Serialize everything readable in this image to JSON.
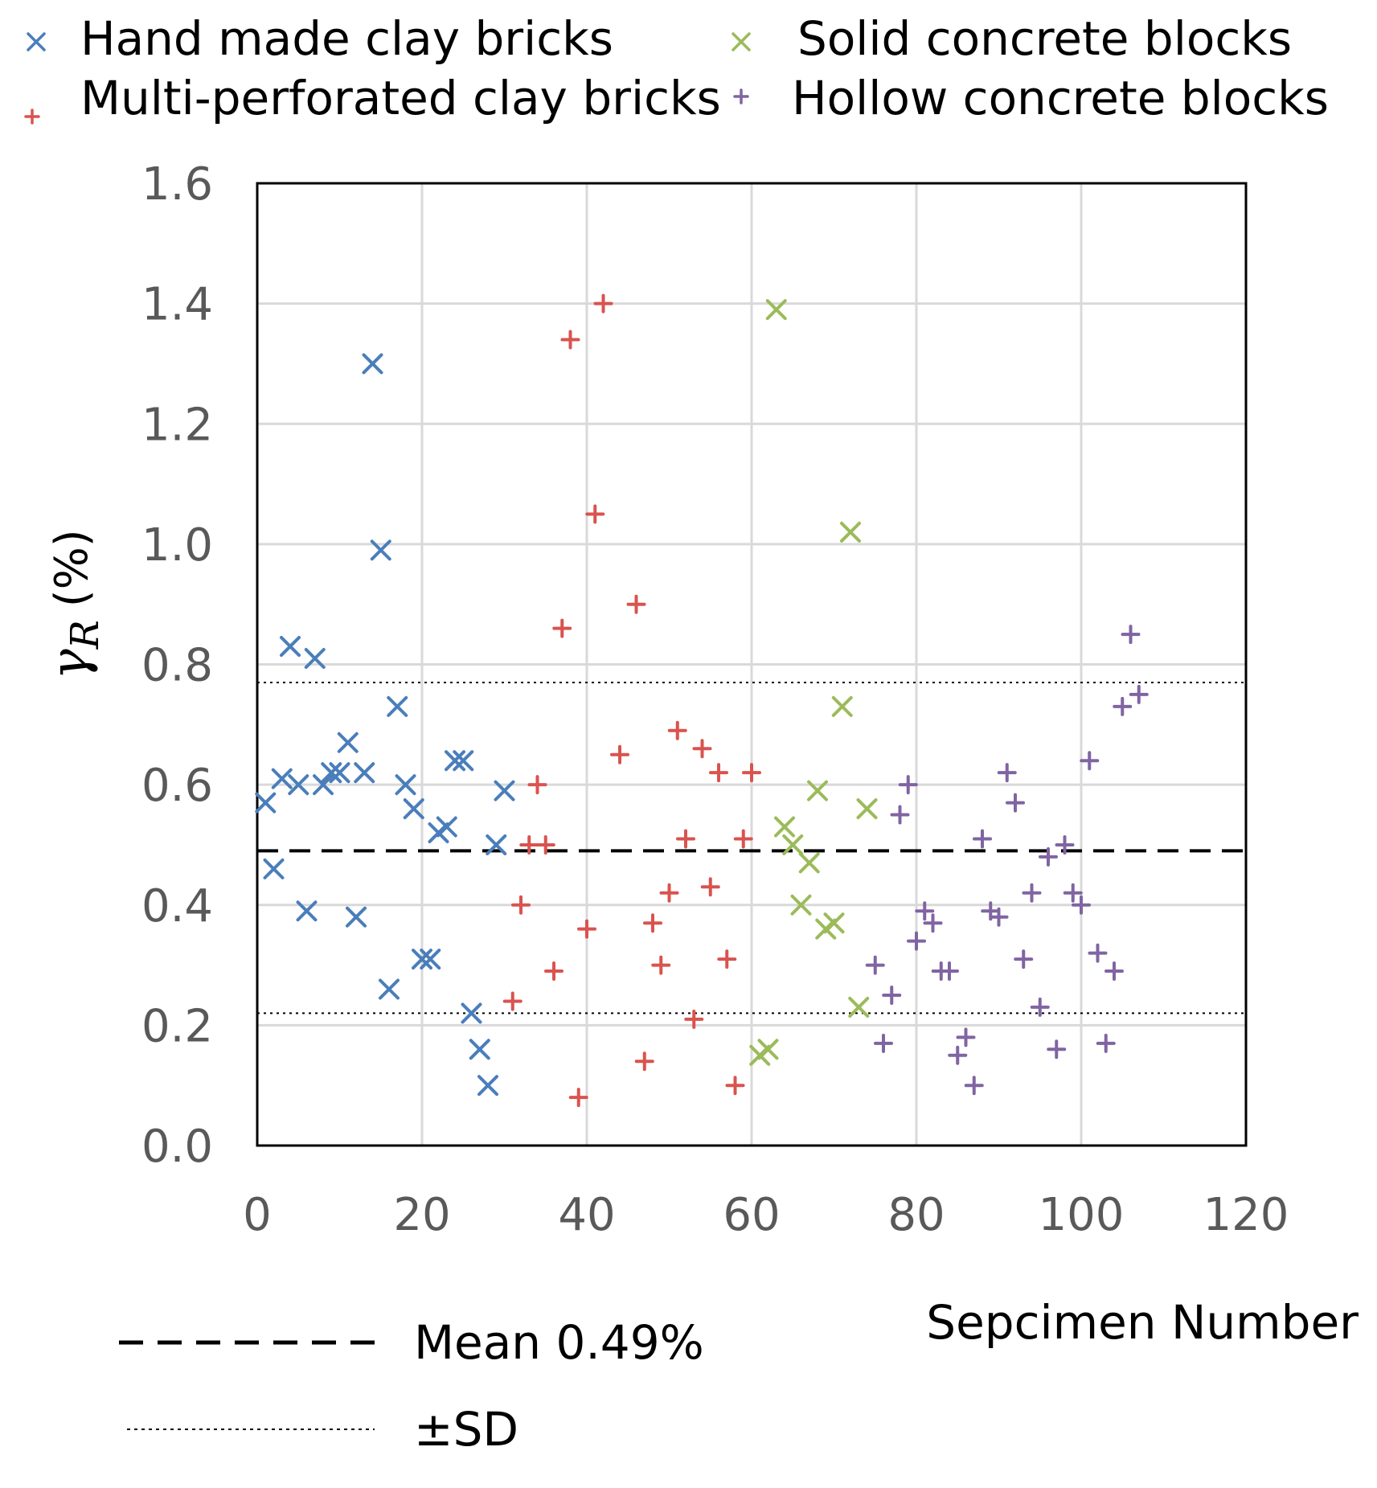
{
  "chart_data": {
    "type": "scatter",
    "title": "",
    "xlabel": "Sepcimen Number",
    "ylabel": "γR (%)",
    "ylabel_main": "γ",
    "ylabel_sub": "R",
    "ylabel_unit": "(%)",
    "xlim": [
      0,
      120
    ],
    "ylim": [
      0,
      1.6
    ],
    "xticks": [
      0,
      20,
      40,
      60,
      80,
      100,
      120
    ],
    "xtick_labels": [
      "0",
      "20",
      "40",
      "60",
      "80",
      "100",
      "120"
    ],
    "yticks": [
      0,
      0.2,
      0.4,
      0.6,
      0.8,
      1.0,
      1.2,
      1.4,
      1.6
    ],
    "ytick_labels": [
      "0.0",
      "0.2",
      "0.4",
      "0.6",
      "0.8",
      "1.0",
      "1.2",
      "1.4",
      "1.6"
    ],
    "grid": true,
    "legend_position": "top",
    "series": [
      {
        "name": "Hand made clay bricks",
        "marker": "x",
        "color": "#4a7ebb",
        "x": [
          1,
          2,
          3,
          4,
          5,
          6,
          7,
          8,
          9,
          10,
          11,
          12,
          13,
          14,
          15,
          16,
          17,
          18,
          19,
          20,
          21,
          22,
          23,
          24,
          25,
          26,
          27,
          28,
          29,
          30
        ],
        "y": [
          0.57,
          0.46,
          0.61,
          0.83,
          0.6,
          0.39,
          0.81,
          0.6,
          0.62,
          0.62,
          0.67,
          0.38,
          0.62,
          1.3,
          0.99,
          0.26,
          0.73,
          0.6,
          0.56,
          0.31,
          0.31,
          0.52,
          0.53,
          0.64,
          0.64,
          0.22,
          0.16,
          0.1,
          0.5,
          0.59
        ]
      },
      {
        "name": "Multi-perforated clay bricks",
        "marker": "+",
        "color": "#d9534f",
        "x": [
          31,
          32,
          33,
          34,
          35,
          36,
          37,
          38,
          39,
          40,
          41,
          42,
          44,
          46,
          47,
          48,
          49,
          50,
          51,
          52,
          53,
          54,
          55,
          56,
          57,
          58,
          59,
          60
        ],
        "y": [
          0.24,
          0.4,
          0.5,
          0.6,
          0.5,
          0.29,
          0.86,
          1.34,
          0.08,
          0.36,
          1.05,
          1.4,
          0.65,
          0.9,
          0.14,
          0.37,
          0.3,
          0.42,
          0.69,
          0.51,
          0.21,
          0.66,
          0.43,
          0.62,
          0.31,
          0.1,
          0.51,
          0.62
        ]
      },
      {
        "name": "Solid concrete blocks",
        "marker": "x",
        "color": "#9bbb59",
        "x": [
          61,
          62,
          63,
          64,
          65,
          66,
          67,
          68,
          69,
          70,
          71,
          72,
          73,
          74
        ],
        "y": [
          0.15,
          0.16,
          1.39,
          0.53,
          0.5,
          0.4,
          0.47,
          0.59,
          0.36,
          0.37,
          0.73,
          1.02,
          0.23,
          0.56
        ]
      },
      {
        "name": "Hollow concrete blocks",
        "marker": "+",
        "color": "#8064a2",
        "x": [
          75,
          76,
          77,
          78,
          79,
          80,
          81,
          82,
          83,
          84,
          85,
          86,
          87,
          88,
          89,
          90,
          91,
          92,
          93,
          94,
          95,
          96,
          97,
          98,
          99,
          100,
          101,
          102,
          103,
          104,
          105,
          106,
          107
        ],
        "y": [
          0.3,
          0.17,
          0.25,
          0.55,
          0.6,
          0.34,
          0.39,
          0.37,
          0.29,
          0.29,
          0.15,
          0.18,
          0.1,
          0.51,
          0.39,
          0.38,
          0.62,
          0.57,
          0.31,
          0.42,
          0.23,
          0.48,
          0.16,
          0.5,
          0.42,
          0.4,
          0.64,
          0.32,
          0.17,
          0.29,
          0.73,
          0.85,
          0.75
        ]
      }
    ],
    "reference_lines": [
      {
        "name": "Mean 0.49%",
        "y": 0.49,
        "style": "dashed"
      },
      {
        "name": "+SD",
        "y": 0.77,
        "style": "dotted"
      },
      {
        "name": "-SD",
        "y": 0.22,
        "style": "dotted"
      }
    ]
  },
  "legend": {
    "items": [
      {
        "label": "Hand made clay bricks",
        "marker": "x",
        "color": "#4a7ebb"
      },
      {
        "label": "Multi-perforated clay bricks",
        "marker": "+",
        "color": "#d9534f"
      },
      {
        "label": "Solid concrete blocks",
        "marker": "x",
        "color": "#9bbb59"
      },
      {
        "label": "Hollow concrete blocks",
        "marker": "+",
        "color": "#8064a2"
      }
    ],
    "line_items": [
      {
        "label": "Mean 0.49%",
        "style": "dashed"
      },
      {
        "label": "±SD",
        "style": "dotted"
      }
    ]
  }
}
